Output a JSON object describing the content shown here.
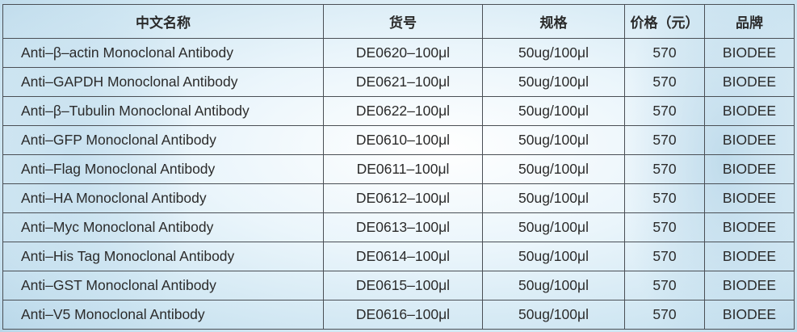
{
  "headers": [
    "中文名称",
    "货号",
    "规格",
    "价格（元）",
    "品牌"
  ],
  "rows": [
    [
      "Anti–β–actin Monoclonal Antibody",
      "DE0620–100μl",
      "50ug/100μl",
      "570",
      "BIODEE"
    ],
    [
      "Anti–GAPDH Monoclonal Antibody",
      "DE0621–100μl",
      "50ug/100μl",
      "570",
      "BIODEE"
    ],
    [
      "Anti–β–Tubulin Monoclonal Antibody",
      "DE0622–100μl",
      "50ug/100μl",
      "570",
      "BIODEE"
    ],
    [
      "Anti–GFP Monoclonal Antibody",
      "DE0610–100μl",
      "50ug/100μl",
      "570",
      "BIODEE"
    ],
    [
      "Anti–Flag Monoclonal Antibody",
      "DE0611–100μl",
      "50ug/100μl",
      "570",
      "BIODEE"
    ],
    [
      "Anti–HA Monoclonal Antibody",
      "DE0612–100μl",
      "50ug/100μl",
      "570",
      "BIODEE"
    ],
    [
      "Anti–Myc Monoclonal Antibody",
      "DE0613–100μl",
      "50ug/100μl",
      "570",
      "BIODEE"
    ],
    [
      "Anti–His Tag Monoclonal Antibody",
      "DE0614–100μl",
      "50ug/100μl",
      "570",
      "BIODEE"
    ],
    [
      "Anti–GST Monoclonal Antibody",
      "DE0615–100μl",
      "50ug/100μl",
      "570",
      "BIODEE"
    ],
    [
      "Anti–V5 Monoclonal Antibody",
      "DE0616–100μl",
      "50ug/100μl",
      "570",
      "BIODEE"
    ]
  ]
}
